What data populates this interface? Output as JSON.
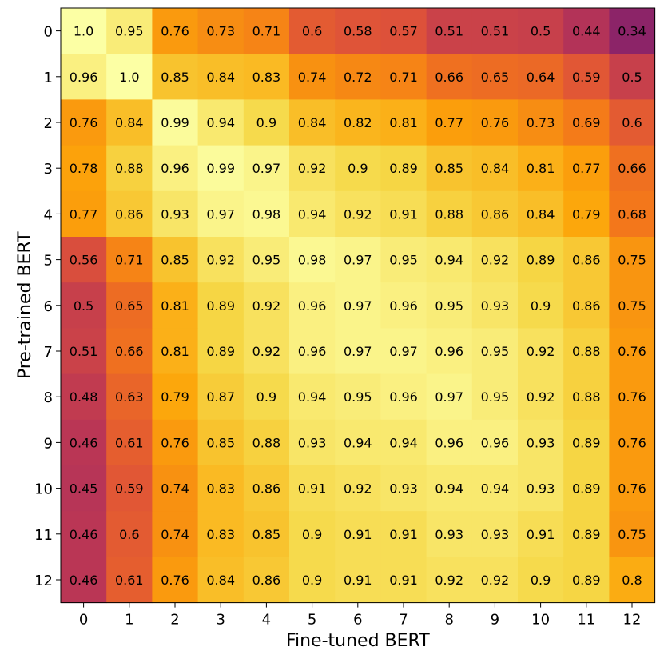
{
  "chart_data": {
    "type": "heatmap",
    "title": "",
    "xlabel": "Fine-tuned BERT",
    "ylabel": "Pre-trained BERT",
    "x_ticks": [
      "0",
      "1",
      "2",
      "3",
      "4",
      "5",
      "6",
      "7",
      "8",
      "9",
      "10",
      "11",
      "12"
    ],
    "y_ticks": [
      "0",
      "1",
      "2",
      "3",
      "4",
      "5",
      "6",
      "7",
      "8",
      "9",
      "10",
      "11",
      "12"
    ],
    "colormap": "inferno",
    "value_range": [
      0.0,
      1.0
    ],
    "values": [
      [
        "1.0",
        "0.95",
        "0.76",
        "0.73",
        "0.71",
        "0.6",
        "0.58",
        "0.57",
        "0.51",
        "0.51",
        "0.5",
        "0.44",
        "0.34"
      ],
      [
        "0.96",
        "1.0",
        "0.85",
        "0.84",
        "0.83",
        "0.74",
        "0.72",
        "0.71",
        "0.66",
        "0.65",
        "0.64",
        "0.59",
        "0.5"
      ],
      [
        "0.76",
        "0.84",
        "0.99",
        "0.94",
        "0.9",
        "0.84",
        "0.82",
        "0.81",
        "0.77",
        "0.76",
        "0.73",
        "0.69",
        "0.6"
      ],
      [
        "0.78",
        "0.88",
        "0.96",
        "0.99",
        "0.97",
        "0.92",
        "0.9",
        "0.89",
        "0.85",
        "0.84",
        "0.81",
        "0.77",
        "0.66"
      ],
      [
        "0.77",
        "0.86",
        "0.93",
        "0.97",
        "0.98",
        "0.94",
        "0.92",
        "0.91",
        "0.88",
        "0.86",
        "0.84",
        "0.79",
        "0.68"
      ],
      [
        "0.56",
        "0.71",
        "0.85",
        "0.92",
        "0.95",
        "0.98",
        "0.97",
        "0.95",
        "0.94",
        "0.92",
        "0.89",
        "0.86",
        "0.75"
      ],
      [
        "0.5",
        "0.65",
        "0.81",
        "0.89",
        "0.92",
        "0.96",
        "0.97",
        "0.96",
        "0.95",
        "0.93",
        "0.9",
        "0.86",
        "0.75"
      ],
      [
        "0.51",
        "0.66",
        "0.81",
        "0.89",
        "0.92",
        "0.96",
        "0.97",
        "0.97",
        "0.96",
        "0.95",
        "0.92",
        "0.88",
        "0.76"
      ],
      [
        "0.48",
        "0.63",
        "0.79",
        "0.87",
        "0.9",
        "0.94",
        "0.95",
        "0.96",
        "0.97",
        "0.95",
        "0.92",
        "0.88",
        "0.76"
      ],
      [
        "0.46",
        "0.61",
        "0.76",
        "0.85",
        "0.88",
        "0.93",
        "0.94",
        "0.94",
        "0.96",
        "0.96",
        "0.93",
        "0.89",
        "0.76"
      ],
      [
        "0.45",
        "0.59",
        "0.74",
        "0.83",
        "0.86",
        "0.91",
        "0.92",
        "0.93",
        "0.94",
        "0.94",
        "0.93",
        "0.89",
        "0.76"
      ],
      [
        "0.46",
        "0.6",
        "0.74",
        "0.83",
        "0.85",
        "0.9",
        "0.91",
        "0.91",
        "0.93",
        "0.93",
        "0.91",
        "0.89",
        "0.75"
      ],
      [
        "0.46",
        "0.61",
        "0.76",
        "0.84",
        "0.86",
        "0.9",
        "0.91",
        "0.91",
        "0.92",
        "0.92",
        "0.9",
        "0.89",
        "0.8"
      ]
    ]
  }
}
